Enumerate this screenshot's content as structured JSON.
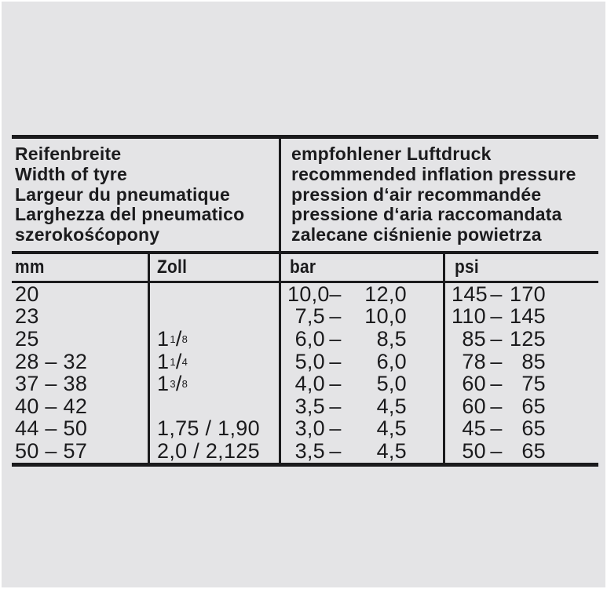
{
  "colors": {
    "page_background": "#e4e4e6",
    "ink": "#1b1b1d"
  },
  "table": {
    "header": {
      "left_lines": [
        "Reifenbreite",
        "Width of tyre",
        "Largeur du pneumatique",
        "Larghezza del pneumatico",
        "szerokośćopony"
      ],
      "right_lines": [
        "empfohlener Luftdruck",
        "recommended inflation pressure",
        "pression d‘air recommandée",
        "pressione d‘aria raccomandata",
        "zalecane ciśnienie powietrza"
      ]
    },
    "columns": [
      "mm",
      "Zoll",
      "bar",
      "psi"
    ],
    "rows": [
      {
        "mm": "20",
        "zoll": [],
        "bar": {
          "lo": "10,0",
          "sep": "–",
          "hi": "12,0"
        },
        "psi": {
          "lo": "145",
          "sep": "–",
          "hi": "170"
        }
      },
      {
        "mm": "23",
        "zoll": [],
        "bar": {
          "lo": "7,5",
          "sep": "–",
          "hi": "10,0"
        },
        "psi": {
          "lo": "110",
          "sep": "–",
          "hi": "145"
        }
      },
      {
        "mm": "25",
        "zoll": [
          {
            "t": "1",
            "s": "normal"
          },
          {
            "t": "1",
            "s": "sup"
          },
          {
            "t": "/",
            "s": "normal"
          },
          {
            "t": "8",
            "s": "sub"
          }
        ],
        "bar": {
          "lo": "6,0",
          "sep": "–",
          "hi": "8,5"
        },
        "psi": {
          "lo": "85",
          "sep": "–",
          "hi": "125"
        }
      },
      {
        "mm": "28 – 32",
        "zoll": [
          {
            "t": "1",
            "s": "normal"
          },
          {
            "t": "1",
            "s": "sup"
          },
          {
            "t": "/",
            "s": "normal"
          },
          {
            "t": "4",
            "s": "sub"
          }
        ],
        "bar": {
          "lo": "5,0",
          "sep": "–",
          "hi": "6,0"
        },
        "psi": {
          "lo": "78",
          "sep": "–",
          "hi": "85"
        }
      },
      {
        "mm": "37 – 38",
        "zoll": [
          {
            "t": "1",
            "s": "normal"
          },
          {
            "t": "3",
            "s": "sup"
          },
          {
            "t": "/",
            "s": "normal"
          },
          {
            "t": "8",
            "s": "sub"
          }
        ],
        "bar": {
          "lo": "4,0",
          "sep": "–",
          "hi": "5,0"
        },
        "psi": {
          "lo": "60",
          "sep": "–",
          "hi": "75"
        }
      },
      {
        "mm": "40 – 42",
        "zoll": [],
        "bar": {
          "lo": "3,5",
          "sep": "–",
          "hi": "4,5"
        },
        "psi": {
          "lo": "60",
          "sep": "–",
          "hi": "65"
        }
      },
      {
        "mm": "44 – 50",
        "zoll": [
          {
            "t": "1,75 / 1,90",
            "s": "normal"
          }
        ],
        "bar": {
          "lo": "3,0",
          "sep": "–",
          "hi": "4,5"
        },
        "psi": {
          "lo": "45",
          "sep": "–",
          "hi": "65"
        }
      },
      {
        "mm": "50 – 57",
        "zoll": [
          {
            "t": "2,0 / 2,125",
            "s": "normal"
          }
        ],
        "bar": {
          "lo": "3,5",
          "sep": "–",
          "hi": "4,5"
        },
        "psi": {
          "lo": "50",
          "sep": "–",
          "hi": "65"
        }
      }
    ]
  }
}
